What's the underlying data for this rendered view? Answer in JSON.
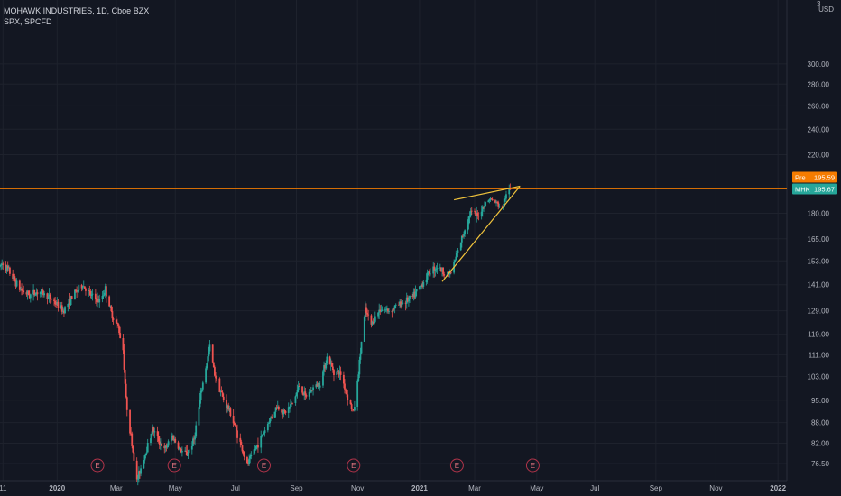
{
  "header": {
    "title": "MOHAWK INDUSTRIES, 1D, Cboe BZX",
    "indicator": "SPX, SPCFD"
  },
  "price_scale": {
    "currency": "USD",
    "top_label": "3"
  },
  "colors": {
    "background": "#131722",
    "grid": "#1e222d",
    "text": "#b2b5be",
    "up": "#26a69a",
    "down": "#ef5350",
    "wedge": "#f0c33c",
    "pre_badge": "#f57c00",
    "last_badge": "#26a69a",
    "hline": "#f57c00",
    "earnings": "#b2344a"
  },
  "badges": {
    "pre": {
      "label": "Pre",
      "value": "195.59"
    },
    "last": {
      "label": "MHK",
      "value": "195.67"
    }
  },
  "earnings_marker_label": "E",
  "chart_data": {
    "type": "candlestick",
    "title": "MOHAWK INDUSTRIES, 1D, Cboe BZX",
    "xlabel": "",
    "ylabel": "",
    "y_scale": "log",
    "ylim": [
      76.5,
      320
    ],
    "xlim": [
      "2019-11-05",
      "2022-01-12"
    ],
    "y_ticks": [
      "300.00",
      "280.00",
      "260.00",
      "240.00",
      "220.00",
      "180.00",
      "165.00",
      "153.00",
      "141.00",
      "129.00",
      "119.00",
      "111.00",
      "103.00",
      "95.00",
      "88.00",
      "82.00",
      "76.50"
    ],
    "x_ticks": [
      {
        "label": "11",
        "date": "2019-11-08"
      },
      {
        "label": "2020",
        "date": "2020-01-02"
      },
      {
        "label": "Mar",
        "date": "2020-03-02"
      },
      {
        "label": "May",
        "date": "2020-05-01"
      },
      {
        "label": "Jul",
        "date": "2020-07-01"
      },
      {
        "label": "Sep",
        "date": "2020-09-01"
      },
      {
        "label": "Nov",
        "date": "2020-11-02"
      },
      {
        "label": "2021",
        "date": "2021-01-04"
      },
      {
        "label": "Mar",
        "date": "2021-03-01"
      },
      {
        "label": "May",
        "date": "2021-05-03"
      },
      {
        "label": "Jul",
        "date": "2021-07-01"
      },
      {
        "label": "Sep",
        "date": "2021-09-01"
      },
      {
        "label": "Nov",
        "date": "2021-11-01"
      },
      {
        "label": "2022",
        "date": "2022-01-03"
      }
    ],
    "price_path": [
      [
        "2019-11-05",
        150
      ],
      [
        "2019-11-08",
        152
      ],
      [
        "2019-11-15",
        147
      ],
      [
        "2019-11-25",
        139
      ],
      [
        "2019-12-05",
        136
      ],
      [
        "2019-12-15",
        138
      ],
      [
        "2019-12-28",
        134
      ],
      [
        "2020-01-08",
        129
      ],
      [
        "2020-01-20",
        137
      ],
      [
        "2020-01-28",
        141
      ],
      [
        "2020-02-05",
        136
      ],
      [
        "2020-02-14",
        133
      ],
      [
        "2020-02-20",
        139
      ],
      [
        "2020-02-26",
        128
      ],
      [
        "2020-03-04",
        122
      ],
      [
        "2020-03-09",
        113
      ],
      [
        "2020-03-12",
        95
      ],
      [
        "2020-03-16",
        86
      ],
      [
        "2020-03-23",
        72
      ],
      [
        "2020-03-30",
        78
      ],
      [
        "2020-04-08",
        86
      ],
      [
        "2020-04-20",
        80
      ],
      [
        "2020-04-28",
        84
      ],
      [
        "2020-05-06",
        80
      ],
      [
        "2020-05-13",
        79
      ],
      [
        "2020-05-20",
        83
      ],
      [
        "2020-05-28",
        99
      ],
      [
        "2020-06-05",
        114
      ],
      [
        "2020-06-10",
        104
      ],
      [
        "2020-06-18",
        96
      ],
      [
        "2020-06-26",
        91
      ],
      [
        "2020-07-06",
        82
      ],
      [
        "2020-07-13",
        76
      ],
      [
        "2020-07-20",
        80
      ],
      [
        "2020-07-28",
        84
      ],
      [
        "2020-08-05",
        89
      ],
      [
        "2020-08-12",
        93
      ],
      [
        "2020-08-20",
        91
      ],
      [
        "2020-08-28",
        94
      ],
      [
        "2020-09-04",
        100
      ],
      [
        "2020-09-10",
        96
      ],
      [
        "2020-09-18",
        99
      ],
      [
        "2020-09-25",
        101
      ],
      [
        "2020-10-02",
        110
      ],
      [
        "2020-10-09",
        105
      ],
      [
        "2020-10-16",
        104
      ],
      [
        "2020-10-23",
        96
      ],
      [
        "2020-10-29",
        91
      ],
      [
        "2020-11-02",
        101
      ],
      [
        "2020-11-06",
        116
      ],
      [
        "2020-11-10",
        129
      ],
      [
        "2020-11-16",
        123
      ],
      [
        "2020-11-25",
        130
      ],
      [
        "2020-12-04",
        129
      ],
      [
        "2020-12-15",
        132
      ],
      [
        "2020-12-28",
        135
      ],
      [
        "2021-01-06",
        141
      ],
      [
        "2021-01-15",
        148
      ],
      [
        "2021-01-22",
        150
      ],
      [
        "2021-02-01",
        146
      ],
      [
        "2021-02-05",
        147
      ],
      [
        "2021-02-12",
        158
      ],
      [
        "2021-02-18",
        169
      ],
      [
        "2021-02-25",
        181
      ],
      [
        "2021-03-04",
        178
      ],
      [
        "2021-03-10",
        185
      ],
      [
        "2021-03-16",
        189
      ],
      [
        "2021-03-22",
        187
      ],
      [
        "2021-03-29",
        183
      ],
      [
        "2021-04-01",
        190
      ],
      [
        "2021-04-06",
        195.67
      ]
    ],
    "wedge": {
      "upper": [
        [
          "2021-02-08",
          188.5
        ],
        [
          "2021-04-16",
          197.5
        ]
      ],
      "lower": [
        [
          "2021-01-27",
          142.5
        ],
        [
          "2021-04-16",
          197.5
        ]
      ]
    },
    "horizontal_line": 195.67,
    "earnings_dates": [
      "2020-02-12",
      "2020-04-30",
      "2020-07-30",
      "2020-10-29",
      "2021-02-11",
      "2021-04-29"
    ]
  }
}
